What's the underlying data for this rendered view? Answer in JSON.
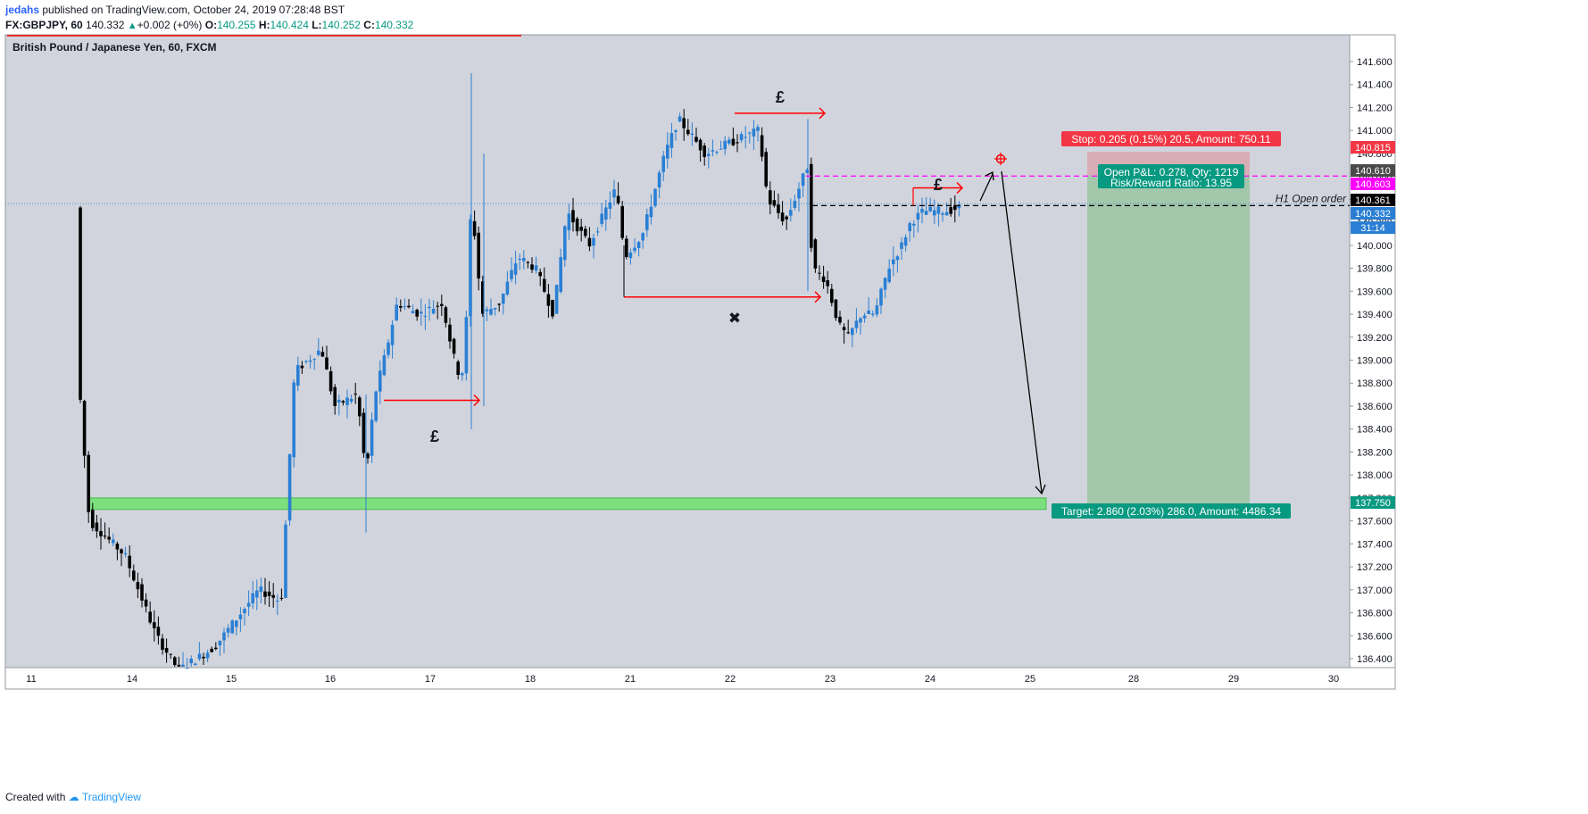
{
  "header": {
    "user": "jedahs",
    "published_text": "published on TradingView.com, October 24, 2019 07:28:48 BST",
    "symbol": "FX:GBPJPY, 60",
    "last": "140.332",
    "change": "+0.002 (+0%)",
    "open_label": "O:",
    "open": "140.255",
    "high_label": "H:",
    "high": "140.424",
    "low_label": "L:",
    "low": "140.252",
    "close_label": "C:",
    "close": "140.332"
  },
  "footer": {
    "created_with": "Created with",
    "brand": "TradingView"
  },
  "colors": {
    "pane_bg": "#d1d4dc",
    "up": "#2a7fd4",
    "down": "#000000",
    "stop_red": "#f23645",
    "target_green": "#089981",
    "magenta": "#ff00ff",
    "annot_red": "#ff0000"
  },
  "chart_data": {
    "type": "candlestick",
    "title": "British Pound / Japanese Yen, 60, FXCM",
    "y_ticks": [
      "141.600",
      "141.400",
      "141.200",
      "141.000",
      "140.800",
      "140.600",
      "140.400",
      "140.200",
      "140.000",
      "139.800",
      "139.600",
      "139.400",
      "139.200",
      "139.000",
      "138.800",
      "138.600",
      "138.400",
      "138.200",
      "138.000",
      "137.800",
      "137.600",
      "137.400",
      "137.200",
      "137.000",
      "136.800",
      "136.600",
      "136.400"
    ],
    "x_ticks": [
      "11",
      "14",
      "15",
      "16",
      "17",
      "18",
      "21",
      "22",
      "23",
      "24",
      "25",
      "28",
      "29",
      "30"
    ],
    "price_labels": [
      {
        "value": "140.815",
        "kind": "stop"
      },
      {
        "value": "140.610",
        "kind": "entry"
      },
      {
        "value": "140.603",
        "kind": "magenta"
      },
      {
        "value": "140.361",
        "kind": "open_order"
      },
      {
        "value": "140.332",
        "kind": "last"
      },
      {
        "value": "31:14",
        "kind": "countdown"
      },
      {
        "value": "137.750",
        "kind": "target"
      }
    ],
    "position": {
      "entry": 140.61,
      "stop": 140.815,
      "target": 137.75,
      "stop_text": "Stop: 0.205 (0.15%) 20.5, Amount: 750.11",
      "pnl_text": "Open P&L: 0.278, Qty: 1219",
      "rr_text": "Risk/Reward Ratio: 13.95",
      "target_text": "Target: 2.860 (2.03%) 286.0, Amount: 4486.34"
    },
    "annotations": {
      "open_order_label": "H1 Open order",
      "pound": "£",
      "cross": "✖",
      "support_zone": [
        137.7,
        137.8
      ],
      "open_order_level": 140.361,
      "magenta_level": 140.603
    },
    "candles": []
  }
}
